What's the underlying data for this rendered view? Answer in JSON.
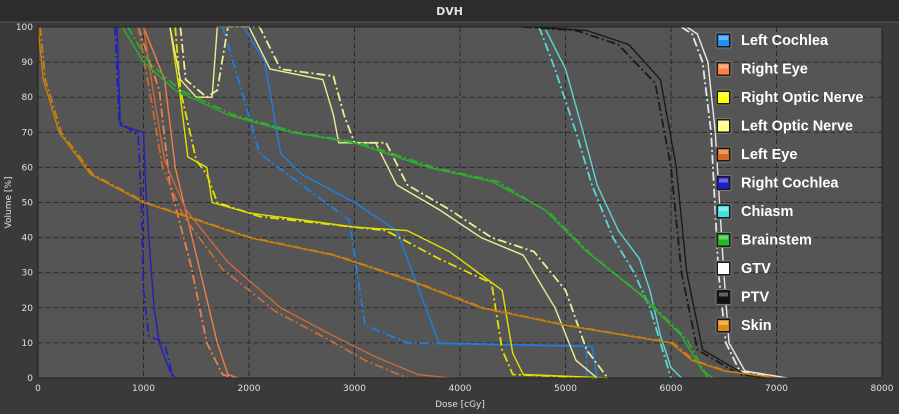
{
  "window": {
    "title": "DVH"
  },
  "chart_data": {
    "type": "line",
    "title": "DVH",
    "xlabel": "Dose [cGy]",
    "ylabel": "Volume [%]",
    "xlim": [
      0,
      8000
    ],
    "ylim": [
      0,
      100
    ],
    "xticks": [
      0,
      1000,
      2000,
      3000,
      4000,
      5000,
      6000,
      7000,
      8000
    ],
    "yticks": [
      0,
      10,
      20,
      30,
      40,
      50,
      60,
      70,
      80,
      90,
      100
    ],
    "grid": true,
    "legend_position": "right",
    "line_styles": [
      "solid",
      "dash-dot"
    ],
    "series": [
      {
        "name": "Left Cochlea",
        "color": "#1e7fe0",
        "swatch": "#1e90ff",
        "solid": [
          [
            1950,
            100
          ],
          [
            2150,
            90
          ],
          [
            2300,
            64
          ],
          [
            2500,
            58
          ],
          [
            3000,
            50
          ],
          [
            3400,
            42
          ],
          [
            3800,
            10
          ],
          [
            5250,
            9
          ],
          [
            5300,
            0
          ]
        ],
        "dashdot": [
          [
            1750,
            100
          ],
          [
            1900,
            85
          ],
          [
            2100,
            64
          ],
          [
            2500,
            55
          ],
          [
            2950,
            45
          ],
          [
            3100,
            15
          ],
          [
            3500,
            10
          ],
          [
            5200,
            9
          ],
          [
            5200,
            0
          ]
        ]
      },
      {
        "name": "Right Eye",
        "color": "#ee7f4a",
        "swatch": "#ff8040",
        "solid": [
          [
            1000,
            100
          ],
          [
            1200,
            85
          ],
          [
            1300,
            60
          ],
          [
            1500,
            35
          ],
          [
            1700,
            10
          ],
          [
            1800,
            1
          ],
          [
            1900,
            0
          ]
        ],
        "dashdot": [
          [
            950,
            100
          ],
          [
            1150,
            82
          ],
          [
            1250,
            55
          ],
          [
            1450,
            32
          ],
          [
            1600,
            10
          ],
          [
            1750,
            1
          ],
          [
            1850,
            0
          ]
        ]
      },
      {
        "name": "Right Optic Nerve",
        "color": "#e2e200",
        "swatch": "#ffff00",
        "solid": [
          [
            1250,
            100
          ],
          [
            1350,
            80
          ],
          [
            1420,
            63
          ],
          [
            1600,
            60
          ],
          [
            1650,
            50
          ],
          [
            2000,
            47
          ],
          [
            2500,
            45
          ],
          [
            3000,
            43
          ],
          [
            3500,
            42
          ],
          [
            3900,
            36
          ],
          [
            4400,
            25
          ],
          [
            4500,
            7
          ],
          [
            4600,
            1
          ],
          [
            5400,
            0
          ]
        ],
        "dashdot": [
          [
            1300,
            100
          ],
          [
            1350,
            82
          ],
          [
            1500,
            62
          ],
          [
            1600,
            58
          ],
          [
            1700,
            50
          ],
          [
            2100,
            46
          ],
          [
            2700,
            44
          ],
          [
            3300,
            42
          ],
          [
            3800,
            34
          ],
          [
            4300,
            27
          ],
          [
            4400,
            8
          ],
          [
            4500,
            1
          ],
          [
            5300,
            0
          ]
        ]
      },
      {
        "name": "Left Optic Nerve",
        "color": "#eded96",
        "swatch": "#ffff80",
        "solid": [
          [
            1250,
            100
          ],
          [
            1350,
            85
          ],
          [
            1500,
            80
          ],
          [
            1650,
            80
          ],
          [
            1700,
            100
          ],
          [
            2000,
            100
          ],
          [
            2200,
            88
          ],
          [
            2700,
            85
          ],
          [
            2800,
            75
          ],
          [
            2850,
            67
          ],
          [
            3200,
            67
          ],
          [
            3400,
            55
          ],
          [
            3800,
            48
          ],
          [
            4200,
            40
          ],
          [
            4600,
            35
          ],
          [
            4900,
            20
          ],
          [
            5100,
            5
          ],
          [
            5300,
            0
          ]
        ],
        "dashdot": [
          [
            1350,
            100
          ],
          [
            1400,
            85
          ],
          [
            1600,
            80
          ],
          [
            1700,
            82
          ],
          [
            1800,
            100
          ],
          [
            2100,
            100
          ],
          [
            2300,
            88
          ],
          [
            2800,
            86
          ],
          [
            2900,
            75
          ],
          [
            3000,
            67
          ],
          [
            3300,
            67
          ],
          [
            3500,
            55
          ],
          [
            3900,
            48
          ],
          [
            4300,
            40
          ],
          [
            4700,
            36
          ],
          [
            5000,
            25
          ],
          [
            5200,
            8
          ],
          [
            5400,
            0
          ]
        ]
      },
      {
        "name": "Left Eye",
        "color": "#c96a38",
        "swatch": "#d2691e",
        "solid": [
          [
            1000,
            100
          ],
          [
            1100,
            80
          ],
          [
            1200,
            62
          ],
          [
            1400,
            48
          ],
          [
            1800,
            33
          ],
          [
            2300,
            20
          ],
          [
            2800,
            12
          ],
          [
            3200,
            6
          ],
          [
            3600,
            1
          ],
          [
            3900,
            0
          ]
        ],
        "dashdot": [
          [
            950,
            100
          ],
          [
            1080,
            78
          ],
          [
            1180,
            60
          ],
          [
            1380,
            46
          ],
          [
            1750,
            31
          ],
          [
            2250,
            19
          ],
          [
            2750,
            11
          ],
          [
            3100,
            5
          ],
          [
            3500,
            0
          ]
        ]
      },
      {
        "name": "Right Cochlea",
        "color": "#2222bb",
        "swatch": "#1e1ecc",
        "solid": [
          [
            750,
            100
          ],
          [
            780,
            72
          ],
          [
            1000,
            70
          ],
          [
            1020,
            55
          ],
          [
            1050,
            40
          ],
          [
            1100,
            20
          ],
          [
            1150,
            10
          ],
          [
            1250,
            2
          ],
          [
            1300,
            0
          ]
        ],
        "dashdot": [
          [
            730,
            100
          ],
          [
            770,
            73
          ],
          [
            950,
            69
          ],
          [
            980,
            50
          ],
          [
            1000,
            25
          ],
          [
            1050,
            12
          ],
          [
            1200,
            10
          ],
          [
            1280,
            0
          ]
        ]
      },
      {
        "name": "Chiasm",
        "color": "#5ad6d6",
        "swatch": "#40e0e0",
        "solid": [
          [
            4800,
            100
          ],
          [
            5000,
            88
          ],
          [
            5150,
            72
          ],
          [
            5300,
            55
          ],
          [
            5500,
            42
          ],
          [
            5700,
            34
          ],
          [
            5800,
            25
          ],
          [
            5900,
            12
          ],
          [
            6000,
            3
          ],
          [
            6100,
            0
          ]
        ],
        "dashdot": [
          [
            4750,
            100
          ],
          [
            4900,
            88
          ],
          [
            5100,
            70
          ],
          [
            5250,
            55
          ],
          [
            5450,
            40
          ],
          [
            5650,
            30
          ],
          [
            5800,
            20
          ],
          [
            5900,
            10
          ],
          [
            6000,
            0
          ]
        ]
      },
      {
        "name": "Brainstem",
        "color": "#2eae2e",
        "swatch": "#22b822",
        "solid": [
          [
            800,
            100
          ],
          [
            1000,
            90
          ],
          [
            1300,
            82
          ],
          [
            1800,
            75
          ],
          [
            2400,
            70
          ],
          [
            3000,
            67
          ],
          [
            3700,
            60
          ],
          [
            4300,
            56
          ],
          [
            4800,
            48
          ],
          [
            5200,
            36
          ],
          [
            5700,
            24
          ],
          [
            6100,
            12
          ],
          [
            6300,
            2
          ],
          [
            6400,
            0
          ]
        ],
        "dashdot": [
          [
            850,
            100
          ],
          [
            1050,
            90
          ],
          [
            1350,
            82
          ],
          [
            1850,
            75
          ],
          [
            2450,
            70
          ],
          [
            3050,
            67
          ],
          [
            3750,
            60
          ],
          [
            4350,
            56
          ],
          [
            4850,
            47
          ],
          [
            5250,
            35
          ],
          [
            5750,
            23
          ],
          [
            6150,
            11
          ],
          [
            6350,
            0
          ]
        ]
      },
      {
        "name": "GTV",
        "color": "#e8e8e8",
        "swatch": "#ffffff",
        "solid": [
          [
            6150,
            100
          ],
          [
            6250,
            98
          ],
          [
            6350,
            90
          ],
          [
            6420,
            70
          ],
          [
            6500,
            30
          ],
          [
            6550,
            10
          ],
          [
            6700,
            2
          ],
          [
            7100,
            0
          ]
        ],
        "dashdot": [
          [
            6100,
            100
          ],
          [
            6200,
            98
          ],
          [
            6300,
            90
          ],
          [
            6380,
            70
          ],
          [
            6450,
            30
          ],
          [
            6520,
            10
          ],
          [
            6650,
            2
          ],
          [
            7000,
            0
          ]
        ]
      },
      {
        "name": "PTV",
        "color": "#1a1a1a",
        "swatch": "#101010",
        "solid": [
          [
            4700,
            100
          ],
          [
            5200,
            99
          ],
          [
            5600,
            95
          ],
          [
            5900,
            85
          ],
          [
            6050,
            60
          ],
          [
            6150,
            30
          ],
          [
            6300,
            8
          ],
          [
            6700,
            1
          ],
          [
            7000,
            0
          ]
        ],
        "dashdot": [
          [
            4600,
            100
          ],
          [
            5100,
            99
          ],
          [
            5500,
            95
          ],
          [
            5850,
            84
          ],
          [
            6000,
            60
          ],
          [
            6100,
            30
          ],
          [
            6250,
            8
          ],
          [
            6650,
            1
          ],
          [
            6950,
            0
          ]
        ]
      },
      {
        "name": "Skin",
        "color": "#c97f10",
        "swatch": "#e08a10",
        "solid": [
          [
            0,
            100
          ],
          [
            50,
            85
          ],
          [
            200,
            70
          ],
          [
            500,
            58
          ],
          [
            1000,
            50
          ],
          [
            1500,
            45
          ],
          [
            2000,
            40
          ],
          [
            2800,
            35
          ],
          [
            3500,
            28
          ],
          [
            4200,
            20
          ],
          [
            5000,
            15
          ],
          [
            5600,
            12
          ],
          [
            6000,
            10
          ],
          [
            6200,
            5
          ],
          [
            6500,
            2
          ],
          [
            7000,
            0
          ]
        ],
        "dashdot": [
          [
            20,
            100
          ],
          [
            70,
            85
          ],
          [
            220,
            70
          ],
          [
            520,
            58
          ],
          [
            1020,
            50
          ],
          [
            1520,
            45
          ],
          [
            2020,
            40
          ],
          [
            2820,
            35
          ],
          [
            3520,
            28
          ],
          [
            4220,
            20
          ],
          [
            5020,
            15
          ],
          [
            5620,
            12
          ],
          [
            6020,
            10
          ],
          [
            6220,
            5
          ],
          [
            6520,
            2
          ],
          [
            7020,
            0
          ]
        ]
      }
    ]
  }
}
